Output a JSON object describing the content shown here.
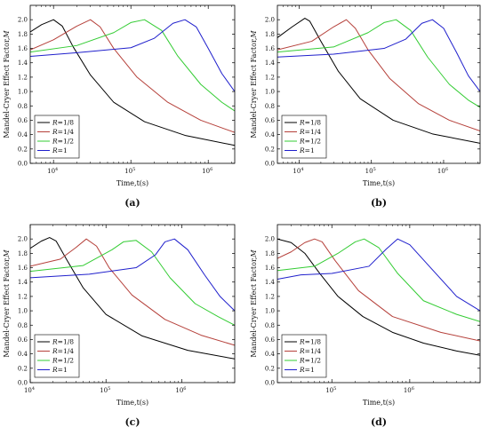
{
  "figure": {
    "ylabel_prefix": "Mandel-Cryer Effect Factor,",
    "ylabel_var": "M",
    "xlabel": "Time,t(s)",
    "legend_var": "R"
  },
  "chart_data": [
    {
      "type": "line",
      "panel_label": "(a)",
      "xscale": "log",
      "xlim": [
        5000,
        2200000
      ],
      "ylim": [
        0,
        2.2
      ],
      "yticks": [
        "0.0",
        "0.2",
        "0.4",
        "0.6",
        "0.8",
        "1.0",
        "1.2",
        "1.4",
        "1.6",
        "1.8",
        "2.0"
      ],
      "xticks": [
        {
          "x": 10000,
          "label": "10",
          "exp": "4"
        },
        {
          "x": 100000,
          "label": "10",
          "exp": "5"
        },
        {
          "x": 1000000,
          "label": "10",
          "exp": "6"
        }
      ],
      "legend": {
        "position": "lower-left"
      },
      "series": [
        {
          "name": "=1/8",
          "color": "#000000",
          "x": [
            5000,
            7000,
            10000,
            13000,
            18000,
            30000,
            60000,
            150000,
            500000,
            2200000
          ],
          "y": [
            1.83,
            1.93,
            2.0,
            1.91,
            1.62,
            1.23,
            0.85,
            0.58,
            0.39,
            0.25
          ]
        },
        {
          "name": "=1/4",
          "color": "#b5403a",
          "x": [
            5000,
            10000,
            20000,
            30000,
            40000,
            60000,
            120000,
            300000,
            800000,
            2200000
          ],
          "y": [
            1.58,
            1.72,
            1.91,
            2.0,
            1.9,
            1.6,
            1.2,
            0.85,
            0.6,
            0.43
          ]
        },
        {
          "name": "=1/2",
          "color": "#33cc33",
          "x": [
            5000,
            20000,
            60000,
            100000,
            150000,
            250000,
            400000,
            800000,
            1500000,
            2200000
          ],
          "y": [
            1.55,
            1.64,
            1.82,
            1.96,
            2.0,
            1.85,
            1.5,
            1.1,
            0.85,
            0.73
          ]
        },
        {
          "name": "=1",
          "color": "#1f1fcc",
          "x": [
            5000,
            20000,
            100000,
            200000,
            350000,
            500000,
            700000,
            1000000,
            1500000,
            2200000
          ],
          "y": [
            1.49,
            1.54,
            1.61,
            1.74,
            1.95,
            2.0,
            1.9,
            1.6,
            1.25,
            1.0
          ]
        }
      ]
    },
    {
      "type": "line",
      "panel_label": "(b)",
      "xscale": "log",
      "xlim": [
        5000,
        3200000
      ],
      "ylim": [
        0,
        2.2
      ],
      "yticks": [
        "0.0",
        "0.2",
        "0.4",
        "0.6",
        "0.8",
        "1.0",
        "1.2",
        "1.4",
        "1.6",
        "1.8",
        "2.0"
      ],
      "xticks": [
        {
          "x": 10000,
          "label": "10",
          "exp": "4"
        },
        {
          "x": 100000,
          "label": "10",
          "exp": "5"
        },
        {
          "x": 1000000,
          "label": "10",
          "exp": "6"
        }
      ],
      "legend": {
        "position": "lower-left"
      },
      "series": [
        {
          "name": "=1/8",
          "color": "#000000",
          "x": [
            5000,
            8000,
            12000,
            14000,
            20000,
            35000,
            70000,
            200000,
            700000,
            3200000
          ],
          "y": [
            1.75,
            1.9,
            2.02,
            1.98,
            1.7,
            1.28,
            0.9,
            0.6,
            0.41,
            0.28
          ]
        },
        {
          "name": "=1/4",
          "color": "#b5403a",
          "x": [
            5000,
            15000,
            30000,
            45000,
            60000,
            90000,
            180000,
            450000,
            1200000,
            3200000
          ],
          "y": [
            1.58,
            1.7,
            1.9,
            2.0,
            1.88,
            1.58,
            1.18,
            0.83,
            0.6,
            0.45
          ]
        },
        {
          "name": "=1/2",
          "color": "#33cc33",
          "x": [
            5000,
            30000,
            90000,
            150000,
            220000,
            350000,
            600000,
            1200000,
            2200000,
            3200000
          ],
          "y": [
            1.55,
            1.62,
            1.82,
            1.96,
            2.0,
            1.85,
            1.48,
            1.1,
            0.88,
            0.78
          ]
        },
        {
          "name": "=1",
          "color": "#1f1fcc",
          "x": [
            5000,
            30000,
            150000,
            300000,
            500000,
            700000,
            1000000,
            1500000,
            2200000,
            3200000
          ],
          "y": [
            1.48,
            1.52,
            1.6,
            1.73,
            1.95,
            2.0,
            1.88,
            1.55,
            1.22,
            1.0
          ]
        }
      ]
    },
    {
      "type": "line",
      "panel_label": "(c)",
      "xscale": "log",
      "xlim": [
        10000,
        5000000
      ],
      "ylim": [
        0,
        2.2
      ],
      "yticks": [
        "0.0",
        "0.2",
        "0.4",
        "0.6",
        "0.8",
        "1.0",
        "1.2",
        "1.4",
        "1.6",
        "1.8",
        "2.0"
      ],
      "xticks": [
        {
          "x": 10000,
          "label": "10",
          "exp": "4"
        },
        {
          "x": 100000,
          "label": "10",
          "exp": "5"
        },
        {
          "x": 1000000,
          "label": "10",
          "exp": "6"
        }
      ],
      "legend": {
        "position": "lower-left"
      },
      "series": [
        {
          "name": "=1/8",
          "color": "#000000",
          "x": [
            10000,
            14000,
            18000,
            22000,
            30000,
            50000,
            100000,
            300000,
            1200000,
            5000000
          ],
          "y": [
            1.87,
            1.97,
            2.02,
            1.97,
            1.72,
            1.32,
            0.95,
            0.65,
            0.45,
            0.33
          ]
        },
        {
          "name": "=1/4",
          "color": "#b5403a",
          "x": [
            10000,
            25000,
            40000,
            55000,
            75000,
            110000,
            220000,
            600000,
            1800000,
            5000000
          ],
          "y": [
            1.62,
            1.72,
            1.88,
            2.0,
            1.9,
            1.6,
            1.22,
            0.88,
            0.66,
            0.52
          ]
        },
        {
          "name": "=1/2",
          "color": "#33cc33",
          "x": [
            10000,
            50000,
            120000,
            170000,
            250000,
            400000,
            700000,
            1500000,
            3000000,
            5000000
          ],
          "y": [
            1.55,
            1.63,
            1.85,
            1.96,
            1.98,
            1.82,
            1.46,
            1.1,
            0.92,
            0.8
          ]
        },
        {
          "name": "=1",
          "color": "#1f1fcc",
          "x": [
            10000,
            60000,
            250000,
            450000,
            600000,
            800000,
            1200000,
            2000000,
            3200000,
            5000000
          ],
          "y": [
            1.46,
            1.51,
            1.6,
            1.78,
            1.96,
            2.0,
            1.85,
            1.5,
            1.2,
            1.0
          ]
        }
      ]
    },
    {
      "type": "line",
      "panel_label": "(d)",
      "xscale": "log",
      "xlim": [
        20000,
        8000000
      ],
      "ylim": [
        0,
        2.2
      ],
      "yticks": [
        "0.0",
        "0.2",
        "0.4",
        "0.6",
        "0.8",
        "1.0",
        "1.2",
        "1.4",
        "1.6",
        "1.8",
        "2.0"
      ],
      "xticks": [
        {
          "x": 100000,
          "label": "10",
          "exp": "5"
        },
        {
          "x": 1000000,
          "label": "10",
          "exp": "6"
        }
      ],
      "legend": {
        "position": "lower-left"
      },
      "series": [
        {
          "name": "=1/8",
          "color": "#000000",
          "x": [
            20000,
            30000,
            45000,
            70000,
            120000,
            250000,
            600000,
            1500000,
            4000000,
            8000000
          ],
          "y": [
            2.0,
            1.95,
            1.8,
            1.52,
            1.2,
            0.92,
            0.7,
            0.55,
            0.44,
            0.38
          ]
        },
        {
          "name": "=1/4",
          "color": "#b5403a",
          "x": [
            20000,
            30000,
            45000,
            60000,
            75000,
            110000,
            220000,
            600000,
            2500000,
            8000000
          ],
          "y": [
            1.73,
            1.82,
            1.95,
            2.0,
            1.96,
            1.7,
            1.28,
            0.92,
            0.7,
            0.58
          ]
        },
        {
          "name": "=1/2",
          "color": "#33cc33",
          "x": [
            20000,
            60000,
            120000,
            200000,
            260000,
            400000,
            700000,
            1500000,
            4000000,
            8000000
          ],
          "y": [
            1.56,
            1.62,
            1.8,
            1.96,
            2.0,
            1.88,
            1.52,
            1.14,
            0.95,
            0.85
          ]
        },
        {
          "name": "=1",
          "color": "#1f1fcc",
          "x": [
            20000,
            40000,
            100000,
            300000,
            500000,
            700000,
            1000000,
            2000000,
            4000000,
            8000000
          ],
          "y": [
            1.44,
            1.5,
            1.52,
            1.62,
            1.86,
            2.0,
            1.92,
            1.56,
            1.2,
            1.0
          ]
        }
      ]
    }
  ]
}
